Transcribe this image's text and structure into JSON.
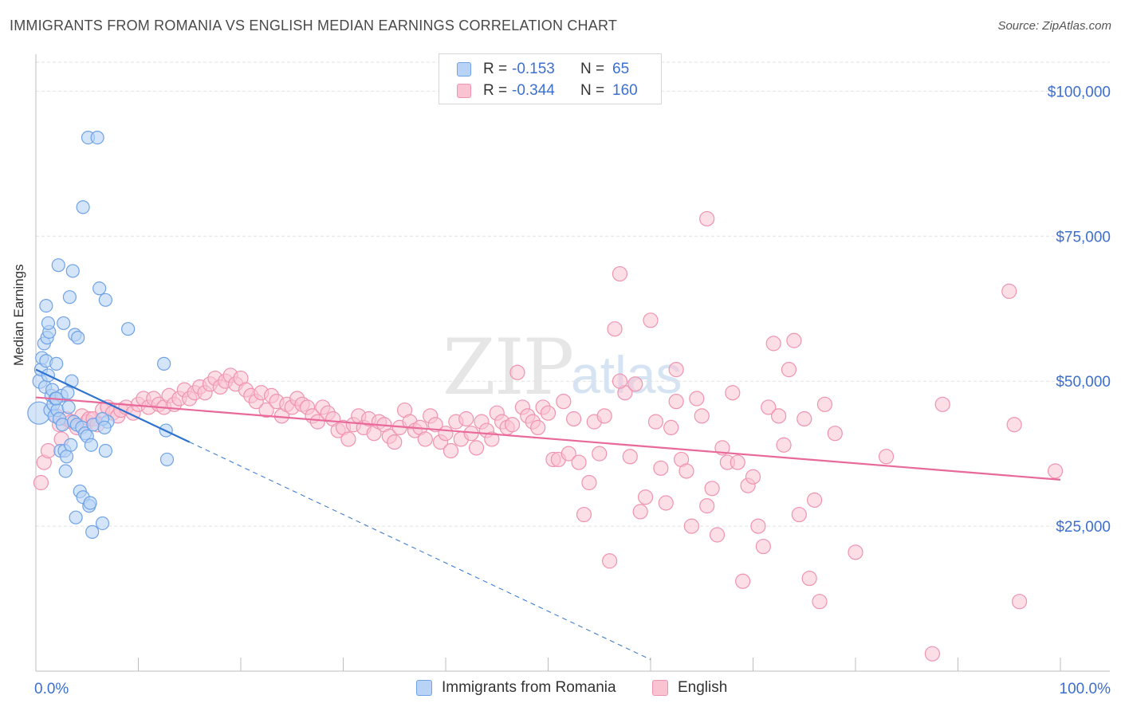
{
  "header": {
    "title": "IMMIGRANTS FROM ROMANIA VS ENGLISH MEDIAN EARNINGS CORRELATION CHART",
    "source": "Source: ZipAtlas.com"
  },
  "watermark": {
    "main": "ZIP",
    "sub": "atlas"
  },
  "legend_top": [
    {
      "label": "R =",
      "r": "-0.153",
      "n_label": "N =",
      "n": "65",
      "fill": "#b8d3f5",
      "stroke": "#6fa2e6"
    },
    {
      "label": "R =",
      "r": "-0.344",
      "n_label": "N =",
      "n": "160",
      "fill": "#f9c3d2",
      "stroke": "#ef93b0"
    }
  ],
  "legend_bottom": [
    {
      "name": "Immigrants from Romania",
      "fill": "#b8d3f5",
      "stroke": "#6fa2e6"
    },
    {
      "name": "English",
      "fill": "#f9c3d2",
      "stroke": "#ef93b0"
    }
  ],
  "chart_data": {
    "type": "scatter",
    "title": "IMMIGRANTS FROM ROMANIA VS ENGLISH MEDIAN EARNINGS CORRELATION CHART",
    "xlabel": "",
    "ylabel": "Median Earnings",
    "xlim": [
      0,
      100
    ],
    "ylim": [
      0,
      105000
    ],
    "x_tick_labels": [
      {
        "value": 0,
        "label": "0.0%"
      },
      {
        "value": 100,
        "label": "100.0%"
      }
    ],
    "y_ticks": [
      {
        "value": 25000,
        "label": "$25,000"
      },
      {
        "value": 50000,
        "label": "$50,000"
      },
      {
        "value": 75000,
        "label": "$75,000"
      },
      {
        "value": 100000,
        "label": "$100,000"
      }
    ],
    "grid": true,
    "colors": {
      "blue_line": "#2f72cf",
      "pink_line": "#e8699a",
      "tick_text": "#3d6fce"
    },
    "series": [
      {
        "name": "Immigrants from Romania",
        "fill": "#b8d3f5",
        "stroke": "#6fa2e6",
        "trend": {
          "x0": 0,
          "y0": 52000,
          "x1": 15,
          "y1": 39500,
          "dash_to_x": 60
        },
        "points": [
          [
            0.3,
            44500,
            14
          ],
          [
            0.4,
            50000,
            9
          ],
          [
            0.5,
            52000,
            8
          ],
          [
            0.6,
            54000,
            8
          ],
          [
            0.8,
            56500,
            8
          ],
          [
            0.9,
            49000,
            8
          ],
          [
            1.0,
            53500,
            8
          ],
          [
            1.1,
            57500,
            8
          ],
          [
            1.2,
            51000,
            8
          ],
          [
            1.3,
            58500,
            8
          ],
          [
            1.4,
            45000,
            8
          ],
          [
            1.5,
            47500,
            8
          ],
          [
            1.6,
            48500,
            8
          ],
          [
            1.7,
            46000,
            8
          ],
          [
            1.8,
            44000,
            8
          ],
          [
            1.9,
            47000,
            8
          ],
          [
            2.0,
            53000,
            8
          ],
          [
            2.1,
            45000,
            8
          ],
          [
            2.2,
            70000,
            8
          ],
          [
            2.3,
            43500,
            8
          ],
          [
            2.4,
            38000,
            8
          ],
          [
            2.5,
            47500,
            8
          ],
          [
            2.6,
            42500,
            8
          ],
          [
            2.7,
            60000,
            8
          ],
          [
            2.8,
            38000,
            8
          ],
          [
            2.9,
            34500,
            8
          ],
          [
            3.0,
            37000,
            8
          ],
          [
            3.1,
            48000,
            8
          ],
          [
            3.2,
            45500,
            8
          ],
          [
            3.3,
            64500,
            8
          ],
          [
            3.4,
            39000,
            8
          ],
          [
            3.5,
            50000,
            8
          ],
          [
            3.6,
            69000,
            8
          ],
          [
            3.7,
            43000,
            8
          ],
          [
            3.8,
            58000,
            8
          ],
          [
            3.9,
            26500,
            8
          ],
          [
            4.0,
            42500,
            8
          ],
          [
            4.1,
            57500,
            8
          ],
          [
            4.3,
            31000,
            8
          ],
          [
            4.5,
            42000,
            8
          ],
          [
            4.6,
            30000,
            8
          ],
          [
            4.8,
            41000,
            8
          ],
          [
            5.0,
            40500,
            8
          ],
          [
            5.1,
            92000,
            8
          ],
          [
            5.2,
            28500,
            8
          ],
          [
            5.3,
            29000,
            8
          ],
          [
            5.4,
            39000,
            8
          ],
          [
            5.5,
            24000,
            8
          ],
          [
            5.6,
            42500,
            8
          ],
          [
            4.6,
            80000,
            8
          ],
          [
            6.0,
            92000,
            8
          ],
          [
            6.2,
            66000,
            8
          ],
          [
            6.5,
            25500,
            8
          ],
          [
            6.8,
            64000,
            8
          ],
          [
            7.0,
            43000,
            8
          ],
          [
            1.0,
            63000,
            8
          ],
          [
            1.2,
            60000,
            8
          ],
          [
            2.0,
            47000,
            8
          ],
          [
            6.5,
            43500,
            8
          ],
          [
            6.7,
            42000,
            8
          ],
          [
            6.8,
            38000,
            8
          ],
          [
            9.0,
            59000,
            8
          ],
          [
            12.5,
            53000,
            8
          ],
          [
            12.7,
            41500,
            8
          ],
          [
            12.8,
            36500,
            8
          ]
        ]
      },
      {
        "name": "English",
        "fill": "#f9c3d2",
        "stroke": "#ef93b0",
        "trend": {
          "x0": 0,
          "y0": 47200,
          "x1": 100,
          "y1": 33000
        },
        "points": [
          [
            0.5,
            32500
          ],
          [
            0.8,
            36000
          ],
          [
            1.2,
            38000
          ],
          [
            2.0,
            44000
          ],
          [
            2.3,
            42500
          ],
          [
            2.5,
            40000
          ],
          [
            3.0,
            43500
          ],
          [
            3.5,
            43000
          ],
          [
            4.0,
            42000
          ],
          [
            4.5,
            44000
          ],
          [
            5.0,
            43000
          ],
          [
            5.2,
            43500
          ],
          [
            5.6,
            43500
          ],
          [
            6.0,
            42500
          ],
          [
            6.5,
            45000
          ],
          [
            7.0,
            45500
          ],
          [
            7.5,
            44500
          ],
          [
            8.0,
            44000
          ],
          [
            8.3,
            45000
          ],
          [
            8.8,
            45500
          ],
          [
            9.5,
            44500
          ],
          [
            10.0,
            46000
          ],
          [
            10.5,
            47000
          ],
          [
            11.0,
            45500
          ],
          [
            11.5,
            47000
          ],
          [
            12.0,
            46000
          ],
          [
            12.5,
            45500
          ],
          [
            13.0,
            47500
          ],
          [
            13.5,
            46000
          ],
          [
            14.0,
            47000
          ],
          [
            14.5,
            48500
          ],
          [
            15.0,
            47000
          ],
          [
            15.5,
            48000
          ],
          [
            16.0,
            49000
          ],
          [
            16.5,
            48000
          ],
          [
            17.0,
            49500
          ],
          [
            17.5,
            50500
          ],
          [
            18.0,
            49000
          ],
          [
            18.5,
            50000
          ],
          [
            19.0,
            51000
          ],
          [
            19.5,
            49500
          ],
          [
            20.0,
            50500
          ],
          [
            20.5,
            48500
          ],
          [
            21.0,
            47500
          ],
          [
            21.5,
            46500
          ],
          [
            22.0,
            48000
          ],
          [
            22.5,
            45000
          ],
          [
            23.0,
            47500
          ],
          [
            23.5,
            46500
          ],
          [
            24.0,
            44000
          ],
          [
            24.5,
            46000
          ],
          [
            25.0,
            45500
          ],
          [
            25.5,
            47000
          ],
          [
            26.0,
            46000
          ],
          [
            26.5,
            45500
          ],
          [
            27.0,
            44000
          ],
          [
            27.5,
            43000
          ],
          [
            28.0,
            45500
          ],
          [
            28.5,
            44500
          ],
          [
            29.0,
            43500
          ],
          [
            29.5,
            41500
          ],
          [
            30.0,
            42000
          ],
          [
            30.5,
            40000
          ],
          [
            31.0,
            42500
          ],
          [
            31.5,
            44000
          ],
          [
            32.0,
            42000
          ],
          [
            32.5,
            43500
          ],
          [
            33.0,
            41000
          ],
          [
            33.5,
            43000
          ],
          [
            34.0,
            42500
          ],
          [
            34.5,
            40500
          ],
          [
            35.0,
            39500
          ],
          [
            35.5,
            42000
          ],
          [
            36.0,
            45000
          ],
          [
            36.5,
            43000
          ],
          [
            37.0,
            41500
          ],
          [
            37.5,
            42000
          ],
          [
            38.0,
            40000
          ],
          [
            38.5,
            44000
          ],
          [
            39.0,
            42500
          ],
          [
            39.5,
            39500
          ],
          [
            40.0,
            41000
          ],
          [
            40.5,
            38000
          ],
          [
            41.0,
            43000
          ],
          [
            41.5,
            40000
          ],
          [
            42.0,
            43500
          ],
          [
            42.5,
            41000
          ],
          [
            43.0,
            38500
          ],
          [
            43.5,
            43000
          ],
          [
            44.0,
            41500
          ],
          [
            44.5,
            40000
          ],
          [
            45.0,
            44500
          ],
          [
            45.5,
            43000
          ],
          [
            46.0,
            42000
          ],
          [
            46.5,
            42500
          ],
          [
            47.0,
            51500
          ],
          [
            47.5,
            45500
          ],
          [
            48.0,
            44000
          ],
          [
            48.5,
            43000
          ],
          [
            49.0,
            42000
          ],
          [
            49.5,
            45500
          ],
          [
            50.0,
            44500
          ],
          [
            50.5,
            36500
          ],
          [
            51.0,
            36500
          ],
          [
            51.5,
            46500
          ],
          [
            52.0,
            37500
          ],
          [
            52.5,
            43500
          ],
          [
            53.0,
            36000
          ],
          [
            53.5,
            27000
          ],
          [
            54.0,
            32500
          ],
          [
            54.5,
            43000
          ],
          [
            55.0,
            37500
          ],
          [
            55.5,
            44000
          ],
          [
            56.0,
            19000
          ],
          [
            56.5,
            59000
          ],
          [
            57.0,
            68500
          ],
          [
            57.5,
            48000
          ],
          [
            58.0,
            37000
          ],
          [
            58.5,
            49500
          ],
          [
            59.0,
            27500
          ],
          [
            59.5,
            30000
          ],
          [
            60.0,
            60500
          ],
          [
            60.5,
            43000
          ],
          [
            61.0,
            35000
          ],
          [
            61.5,
            29000
          ],
          [
            62.0,
            42000
          ],
          [
            62.5,
            52000
          ],
          [
            63.0,
            36500
          ],
          [
            63.5,
            34500
          ],
          [
            64.0,
            25000
          ],
          [
            64.5,
            47000
          ],
          [
            65.0,
            44000
          ],
          [
            65.5,
            28500
          ],
          [
            66.0,
            31500
          ],
          [
            66.5,
            23500
          ],
          [
            67.0,
            38500
          ],
          [
            67.5,
            36000
          ],
          [
            68.0,
            48000
          ],
          [
            68.5,
            36000
          ],
          [
            69.0,
            15500
          ],
          [
            69.5,
            32000
          ],
          [
            70.0,
            33500
          ],
          [
            70.5,
            25000
          ],
          [
            71.0,
            21500
          ],
          [
            71.5,
            45500
          ],
          [
            72.0,
            56500
          ],
          [
            72.5,
            44000
          ],
          [
            73.0,
            39000
          ],
          [
            73.5,
            52000
          ],
          [
            74.0,
            57000
          ],
          [
            74.5,
            27000
          ],
          [
            75.0,
            43500
          ],
          [
            75.5,
            16000
          ],
          [
            76.0,
            29500
          ],
          [
            76.5,
            12000
          ],
          [
            77.0,
            46000
          ],
          [
            78.0,
            41000
          ],
          [
            80.0,
            20500
          ],
          [
            83.0,
            37000
          ],
          [
            88.5,
            46000
          ],
          [
            95.0,
            65500
          ],
          [
            95.5,
            42500
          ],
          [
            96.0,
            12000
          ],
          [
            99.5,
            34500
          ],
          [
            87.5,
            3000
          ],
          [
            65.5,
            78000
          ],
          [
            57.0,
            50000
          ],
          [
            62.5,
            46500
          ]
        ]
      }
    ]
  }
}
